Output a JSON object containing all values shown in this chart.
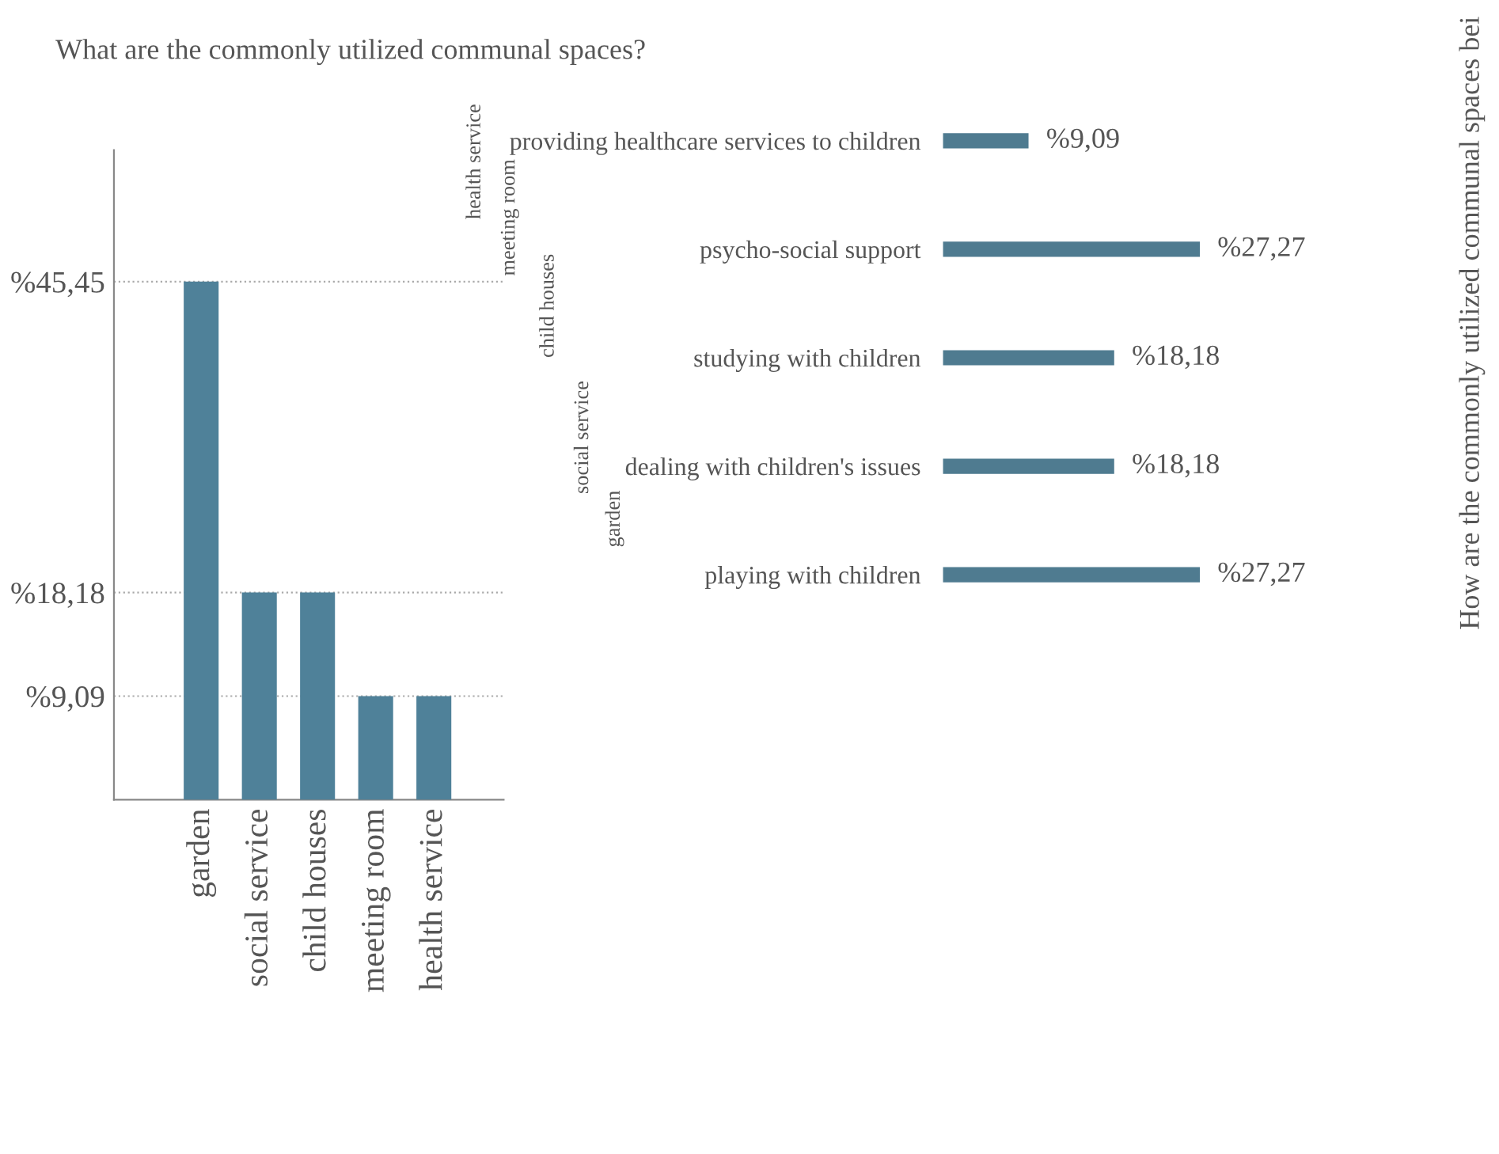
{
  "chart_data": [
    {
      "type": "bar",
      "title": "What are the commonly utilized communal spaces?",
      "categories": [
        "garden",
        "social service",
        "child houses",
        "meeting room",
        "health service"
      ],
      "values": [
        45.45,
        18.18,
        18.18,
        9.09,
        9.09
      ],
      "color": "#4f8199",
      "ylim": [
        0,
        57
      ],
      "yticks": [
        {
          "value": 9.09,
          "label": "%9,09"
        },
        {
          "value": 18.18,
          "label": "%18,18"
        },
        {
          "value": 45.45,
          "label": "%45,45"
        }
      ],
      "grid": "y",
      "legend": false
    },
    {
      "type": "bar",
      "orientation": "horizontal",
      "ylabel": "How are the commonly utilized communal spaces bei",
      "categories": [
        "providing healthcare services to children",
        "psycho-social support",
        "studying with children",
        "dealing with children's issues",
        "playing with children"
      ],
      "values": [
        9.09,
        27.27,
        18.18,
        18.18,
        27.27
      ],
      "color": "#4f7b90",
      "value_labels": [
        "%9,09",
        "%27,27",
        "%18,18",
        "%18,18",
        "%27,27"
      ],
      "annotations": [
        "health service",
        "meeting room",
        "child houses",
        "social service",
        "garden"
      ],
      "legend": false
    }
  ]
}
